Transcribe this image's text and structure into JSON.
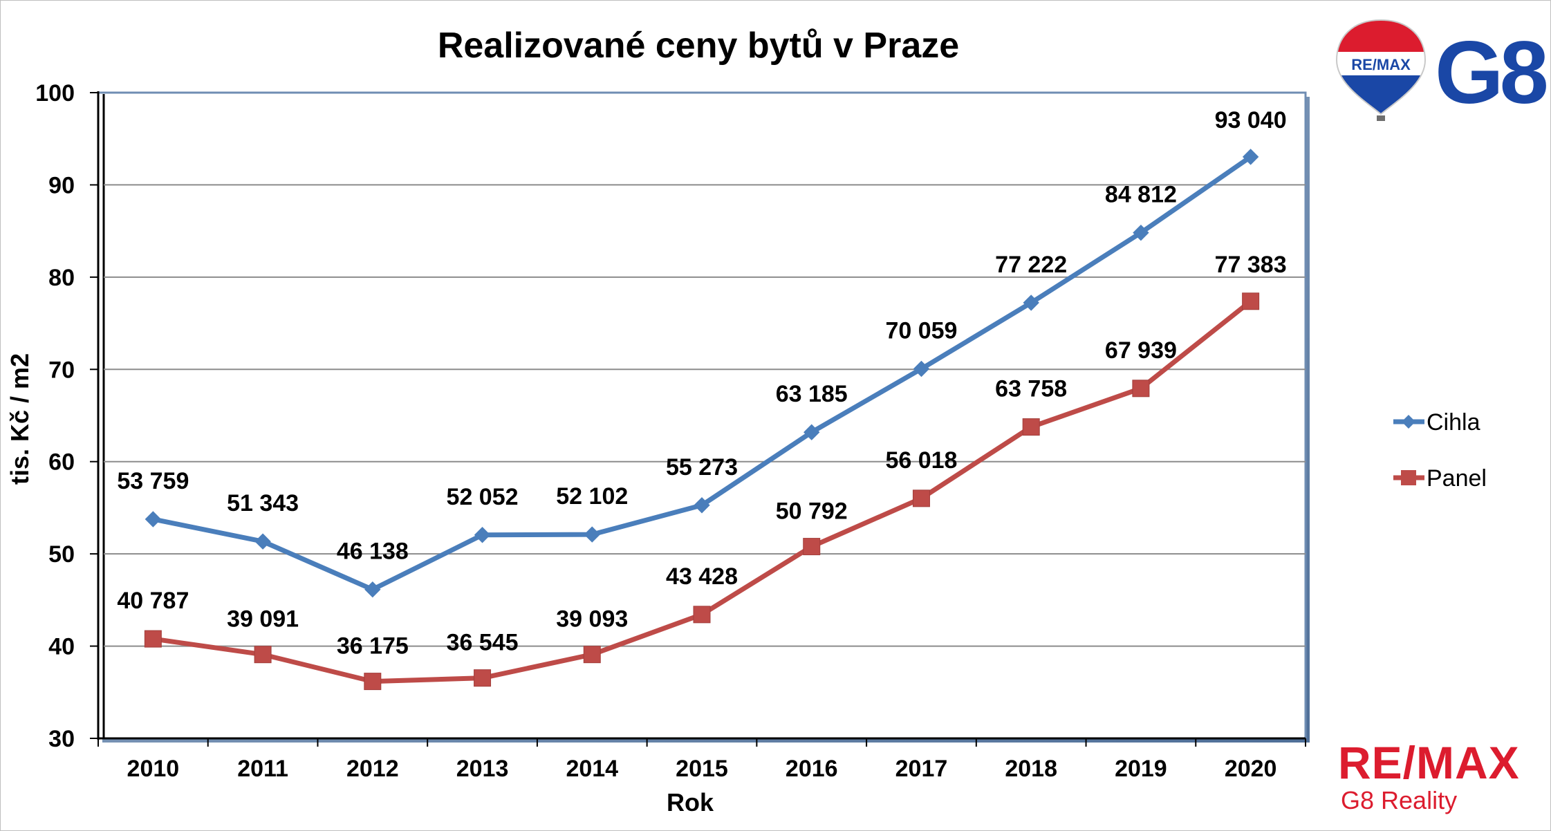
{
  "colors": {
    "cihla": "#4a7ebb",
    "panel": "#be4b48",
    "remax_red": "#dc1c2e",
    "remax_blue": "#1a47a6"
  },
  "logos": {
    "balloon_text": "RE/MAX",
    "brand": "G8",
    "remax": "RE/MAX",
    "reality": "G8 Reality"
  },
  "chart_data": {
    "type": "line",
    "title": "Realizované ceny bytů v Praze",
    "xlabel": "Rok",
    "ylabel": "tis. Kč / m2",
    "ylim": [
      30,
      100
    ],
    "yticks": [
      30,
      40,
      50,
      60,
      70,
      80,
      90,
      100
    ],
    "categories": [
      "2010",
      "2011",
      "2012",
      "2013",
      "2014",
      "2015",
      "2016",
      "2017",
      "2018",
      "2019",
      "2020"
    ],
    "grid": true,
    "legend": "right",
    "series": [
      {
        "name": "Cihla",
        "marker": "diamond",
        "values": [
          53.759,
          51.343,
          46.138,
          52.052,
          52.102,
          55.273,
          63.185,
          70.059,
          77.222,
          84.812,
          93.04
        ],
        "labels": [
          "53 759",
          "51 343",
          "46 138",
          "52 052",
          "52 102",
          "55 273",
          "63 185",
          "70 059",
          "77 222",
          "84 812",
          "93 040"
        ]
      },
      {
        "name": "Panel",
        "marker": "square",
        "values": [
          40.787,
          39.091,
          36.175,
          36.545,
          39.093,
          43.428,
          50.792,
          56.018,
          63.758,
          67.939,
          77.383
        ],
        "labels": [
          "40 787",
          "39 091",
          "36 175",
          "36 545",
          "39 093",
          "43 428",
          "50 792",
          "56 018",
          "63 758",
          "67 939",
          "77 383"
        ]
      }
    ]
  }
}
